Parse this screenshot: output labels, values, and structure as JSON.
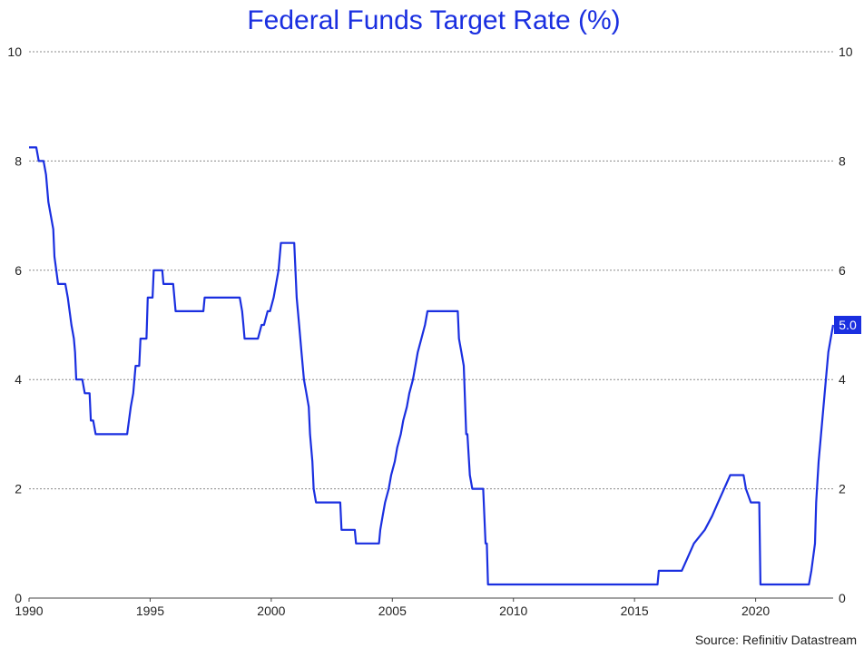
{
  "colors": {
    "series": "#1a2fe0",
    "title": "#1a2fe0",
    "badge": "#1a2fe0"
  },
  "chart_data": {
    "type": "line",
    "title": "Federal Funds Target Rate (%)",
    "source": "Source: Refinitiv Datastream",
    "xlim": [
      1990,
      2023.2
    ],
    "ylim": [
      0,
      10
    ],
    "x_ticks": [
      1990,
      1995,
      2000,
      2005,
      2010,
      2015,
      2020
    ],
    "y_ticks": [
      0,
      2,
      4,
      6,
      8,
      10
    ],
    "grid": "horizontal dotted",
    "last_value_label": "5.0",
    "series": [
      {
        "name": "Federal Funds Target Rate",
        "points": [
          [
            1990.0,
            8.25
          ],
          [
            1990.3,
            8.25
          ],
          [
            1990.4,
            8.0
          ],
          [
            1990.6,
            8.0
          ],
          [
            1990.7,
            7.75
          ],
          [
            1990.8,
            7.25
          ],
          [
            1990.9,
            7.0
          ],
          [
            1991.0,
            6.75
          ],
          [
            1991.05,
            6.25
          ],
          [
            1991.2,
            5.75
          ],
          [
            1991.5,
            5.75
          ],
          [
            1991.6,
            5.5
          ],
          [
            1991.75,
            5.0
          ],
          [
            1991.85,
            4.75
          ],
          [
            1991.9,
            4.5
          ],
          [
            1991.95,
            4.0
          ],
          [
            1992.2,
            4.0
          ],
          [
            1992.3,
            3.75
          ],
          [
            1992.5,
            3.75
          ],
          [
            1992.55,
            3.25
          ],
          [
            1992.65,
            3.25
          ],
          [
            1992.75,
            3.0
          ],
          [
            1994.05,
            3.0
          ],
          [
            1994.2,
            3.5
          ],
          [
            1994.3,
            3.75
          ],
          [
            1994.4,
            4.25
          ],
          [
            1994.55,
            4.25
          ],
          [
            1994.6,
            4.75
          ],
          [
            1994.85,
            4.75
          ],
          [
            1994.9,
            5.5
          ],
          [
            1995.1,
            5.5
          ],
          [
            1995.15,
            6.0
          ],
          [
            1995.5,
            6.0
          ],
          [
            1995.55,
            5.75
          ],
          [
            1995.95,
            5.75
          ],
          [
            1996.05,
            5.25
          ],
          [
            1997.2,
            5.25
          ],
          [
            1997.25,
            5.5
          ],
          [
            1998.7,
            5.5
          ],
          [
            1998.8,
            5.25
          ],
          [
            1998.85,
            5.0
          ],
          [
            1998.9,
            4.75
          ],
          [
            1999.45,
            4.75
          ],
          [
            1999.6,
            5.0
          ],
          [
            1999.7,
            5.0
          ],
          [
            1999.85,
            5.25
          ],
          [
            1999.95,
            5.25
          ],
          [
            2000.1,
            5.5
          ],
          [
            2000.2,
            5.75
          ],
          [
            2000.3,
            6.0
          ],
          [
            2000.4,
            6.5
          ],
          [
            2000.95,
            6.5
          ],
          [
            2001.05,
            5.5
          ],
          [
            2001.15,
            5.0
          ],
          [
            2001.25,
            4.5
          ],
          [
            2001.35,
            4.0
          ],
          [
            2001.45,
            3.75
          ],
          [
            2001.55,
            3.5
          ],
          [
            2001.6,
            3.0
          ],
          [
            2001.7,
            2.5
          ],
          [
            2001.75,
            2.0
          ],
          [
            2001.85,
            1.75
          ],
          [
            2002.85,
            1.75
          ],
          [
            2002.9,
            1.25
          ],
          [
            2003.45,
            1.25
          ],
          [
            2003.5,
            1.0
          ],
          [
            2004.45,
            1.0
          ],
          [
            2004.5,
            1.25
          ],
          [
            2004.6,
            1.5
          ],
          [
            2004.7,
            1.75
          ],
          [
            2004.85,
            2.0
          ],
          [
            2004.95,
            2.25
          ],
          [
            2005.1,
            2.5
          ],
          [
            2005.2,
            2.75
          ],
          [
            2005.35,
            3.0
          ],
          [
            2005.45,
            3.25
          ],
          [
            2005.6,
            3.5
          ],
          [
            2005.7,
            3.75
          ],
          [
            2005.85,
            4.0
          ],
          [
            2005.95,
            4.25
          ],
          [
            2006.05,
            4.5
          ],
          [
            2006.2,
            4.75
          ],
          [
            2006.35,
            5.0
          ],
          [
            2006.45,
            5.25
          ],
          [
            2007.7,
            5.25
          ],
          [
            2007.75,
            4.75
          ],
          [
            2007.85,
            4.5
          ],
          [
            2007.95,
            4.25
          ],
          [
            2008.05,
            3.0
          ],
          [
            2008.1,
            3.0
          ],
          [
            2008.2,
            2.25
          ],
          [
            2008.3,
            2.0
          ],
          [
            2008.75,
            2.0
          ],
          [
            2008.8,
            1.5
          ],
          [
            2008.85,
            1.0
          ],
          [
            2008.9,
            1.0
          ],
          [
            2008.95,
            0.25
          ],
          [
            2015.95,
            0.25
          ],
          [
            2016.0,
            0.5
          ],
          [
            2016.95,
            0.5
          ],
          [
            2017.2,
            0.75
          ],
          [
            2017.45,
            1.0
          ],
          [
            2017.9,
            1.25
          ],
          [
            2018.2,
            1.5
          ],
          [
            2018.45,
            1.75
          ],
          [
            2018.7,
            2.0
          ],
          [
            2018.95,
            2.25
          ],
          [
            2019.5,
            2.25
          ],
          [
            2019.6,
            2.0
          ],
          [
            2019.8,
            1.75
          ],
          [
            2020.15,
            1.75
          ],
          [
            2020.2,
            0.25
          ],
          [
            2022.2,
            0.25
          ],
          [
            2022.3,
            0.5
          ],
          [
            2022.45,
            1.0
          ],
          [
            2022.5,
            1.75
          ],
          [
            2022.6,
            2.5
          ],
          [
            2022.75,
            3.25
          ],
          [
            2022.9,
            4.0
          ],
          [
            2023.0,
            4.5
          ],
          [
            2023.1,
            4.75
          ],
          [
            2023.2,
            5.0
          ]
        ]
      }
    ]
  }
}
